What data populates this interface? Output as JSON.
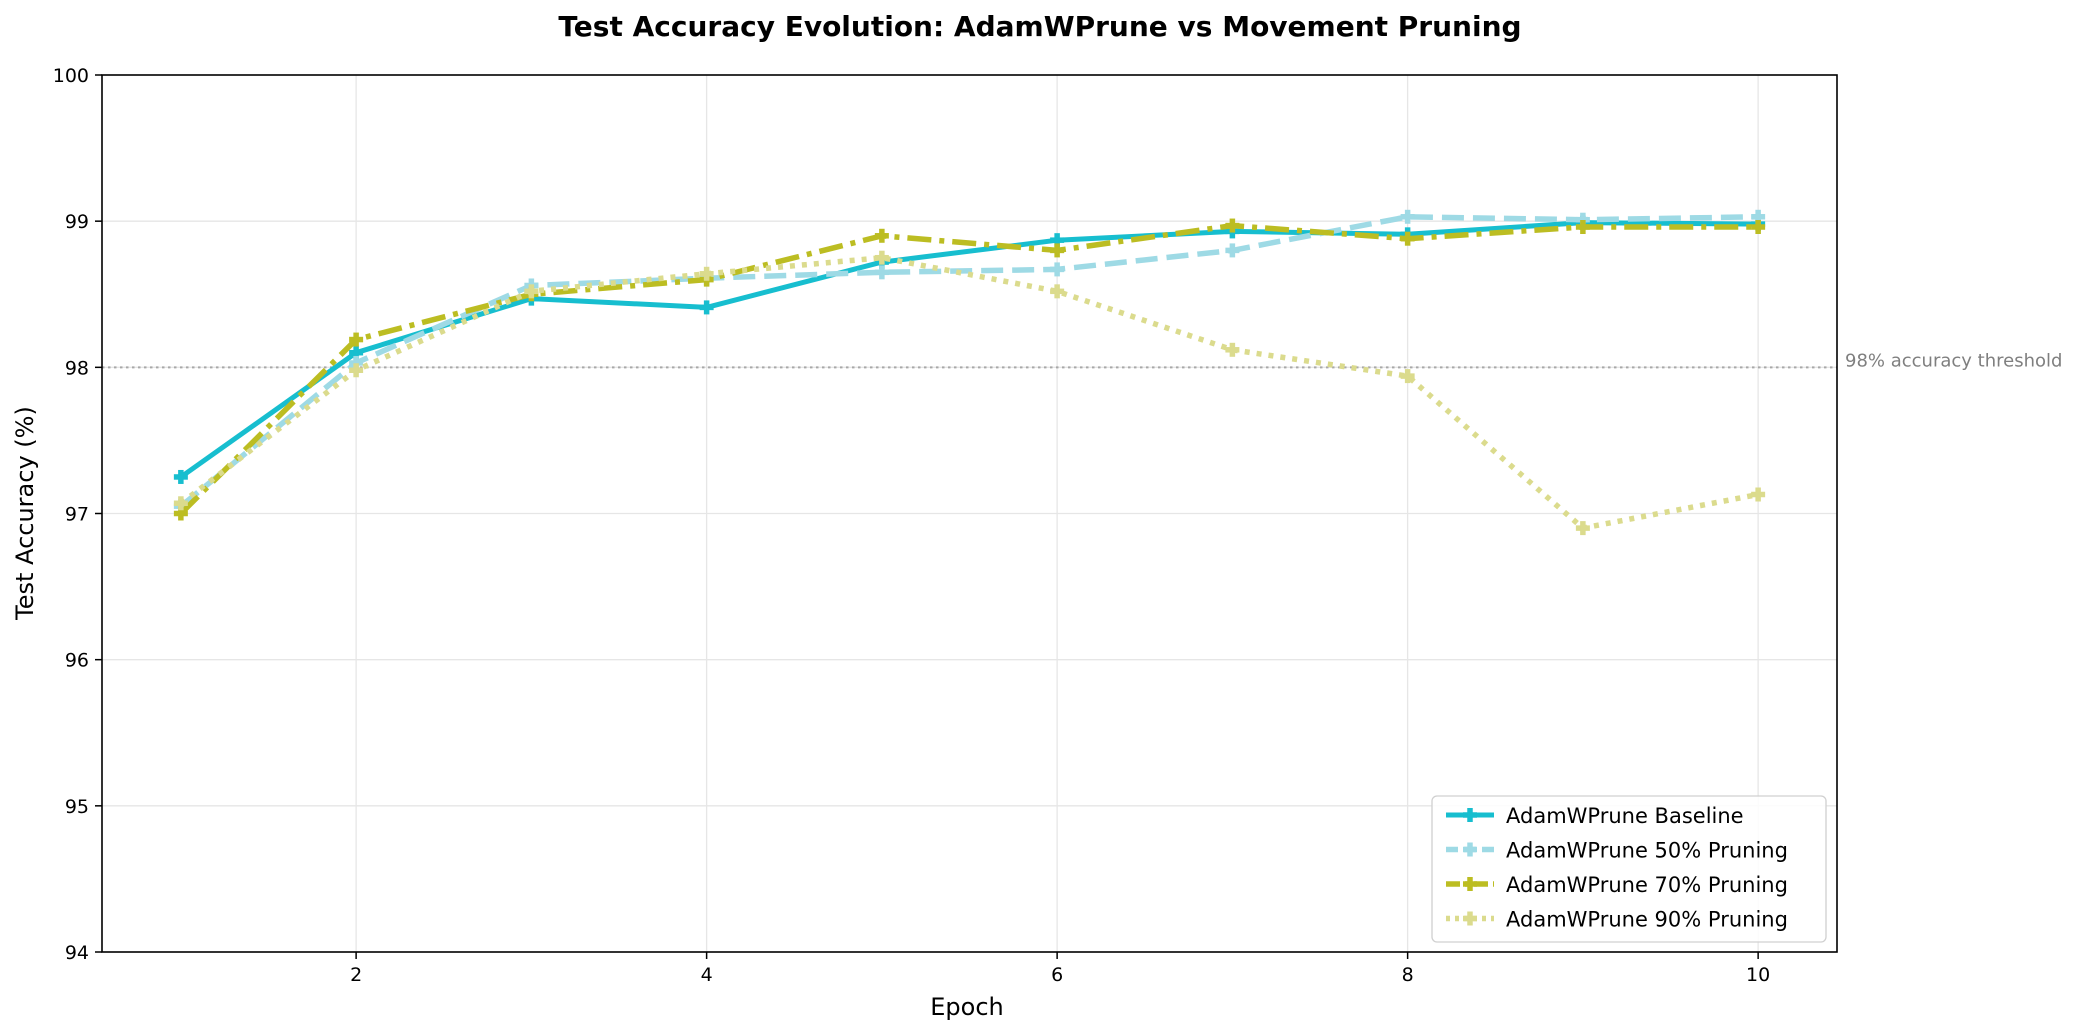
{
  "chart_data": {
    "type": "line",
    "title": "Test Accuracy Evolution: AdamWPrune vs Movement Pruning",
    "xlabel": "Epoch",
    "ylabel": "Test Accuracy (%)",
    "xlim": [
      0.55,
      10.45
    ],
    "ylim": [
      94,
      100
    ],
    "xticks": [
      2,
      4,
      6,
      8,
      10
    ],
    "yticks": [
      94,
      95,
      96,
      97,
      98,
      99,
      100
    ],
    "grid": true,
    "legend_position": "lower-right",
    "x": [
      1,
      2,
      3,
      4,
      5,
      6,
      7,
      8,
      9,
      10
    ],
    "threshold": {
      "value": 98,
      "label": "98% accuracy threshold",
      "color": "#a8a8a8"
    },
    "series": [
      {
        "name": "AdamWPrune Baseline",
        "values": [
          97.25,
          98.1,
          98.47,
          98.41,
          98.72,
          98.87,
          98.93,
          98.91,
          98.99,
          98.98
        ],
        "color": "#17becf",
        "dash": "solid",
        "marker": "plus"
      },
      {
        "name": "AdamWPrune 50% Pruning",
        "values": [
          97.05,
          98.03,
          98.56,
          98.61,
          98.65,
          98.67,
          98.8,
          99.03,
          99.01,
          99.03
        ],
        "color": "#9edae5",
        "dash": "dashed",
        "marker": "plus"
      },
      {
        "name": "AdamWPrune 70% Pruning",
        "values": [
          97.0,
          98.19,
          98.5,
          98.6,
          98.9,
          98.8,
          98.97,
          98.88,
          98.96,
          98.96
        ],
        "color": "#bcbd22",
        "dash": "dashdot",
        "marker": "plus"
      },
      {
        "name": "AdamWPrune 90% Pruning",
        "values": [
          97.07,
          97.98,
          98.52,
          98.64,
          98.75,
          98.52,
          98.12,
          97.94,
          96.9,
          97.13
        ],
        "color": "#dbdb8d",
        "dash": "dotted",
        "marker": "plus"
      }
    ]
  }
}
